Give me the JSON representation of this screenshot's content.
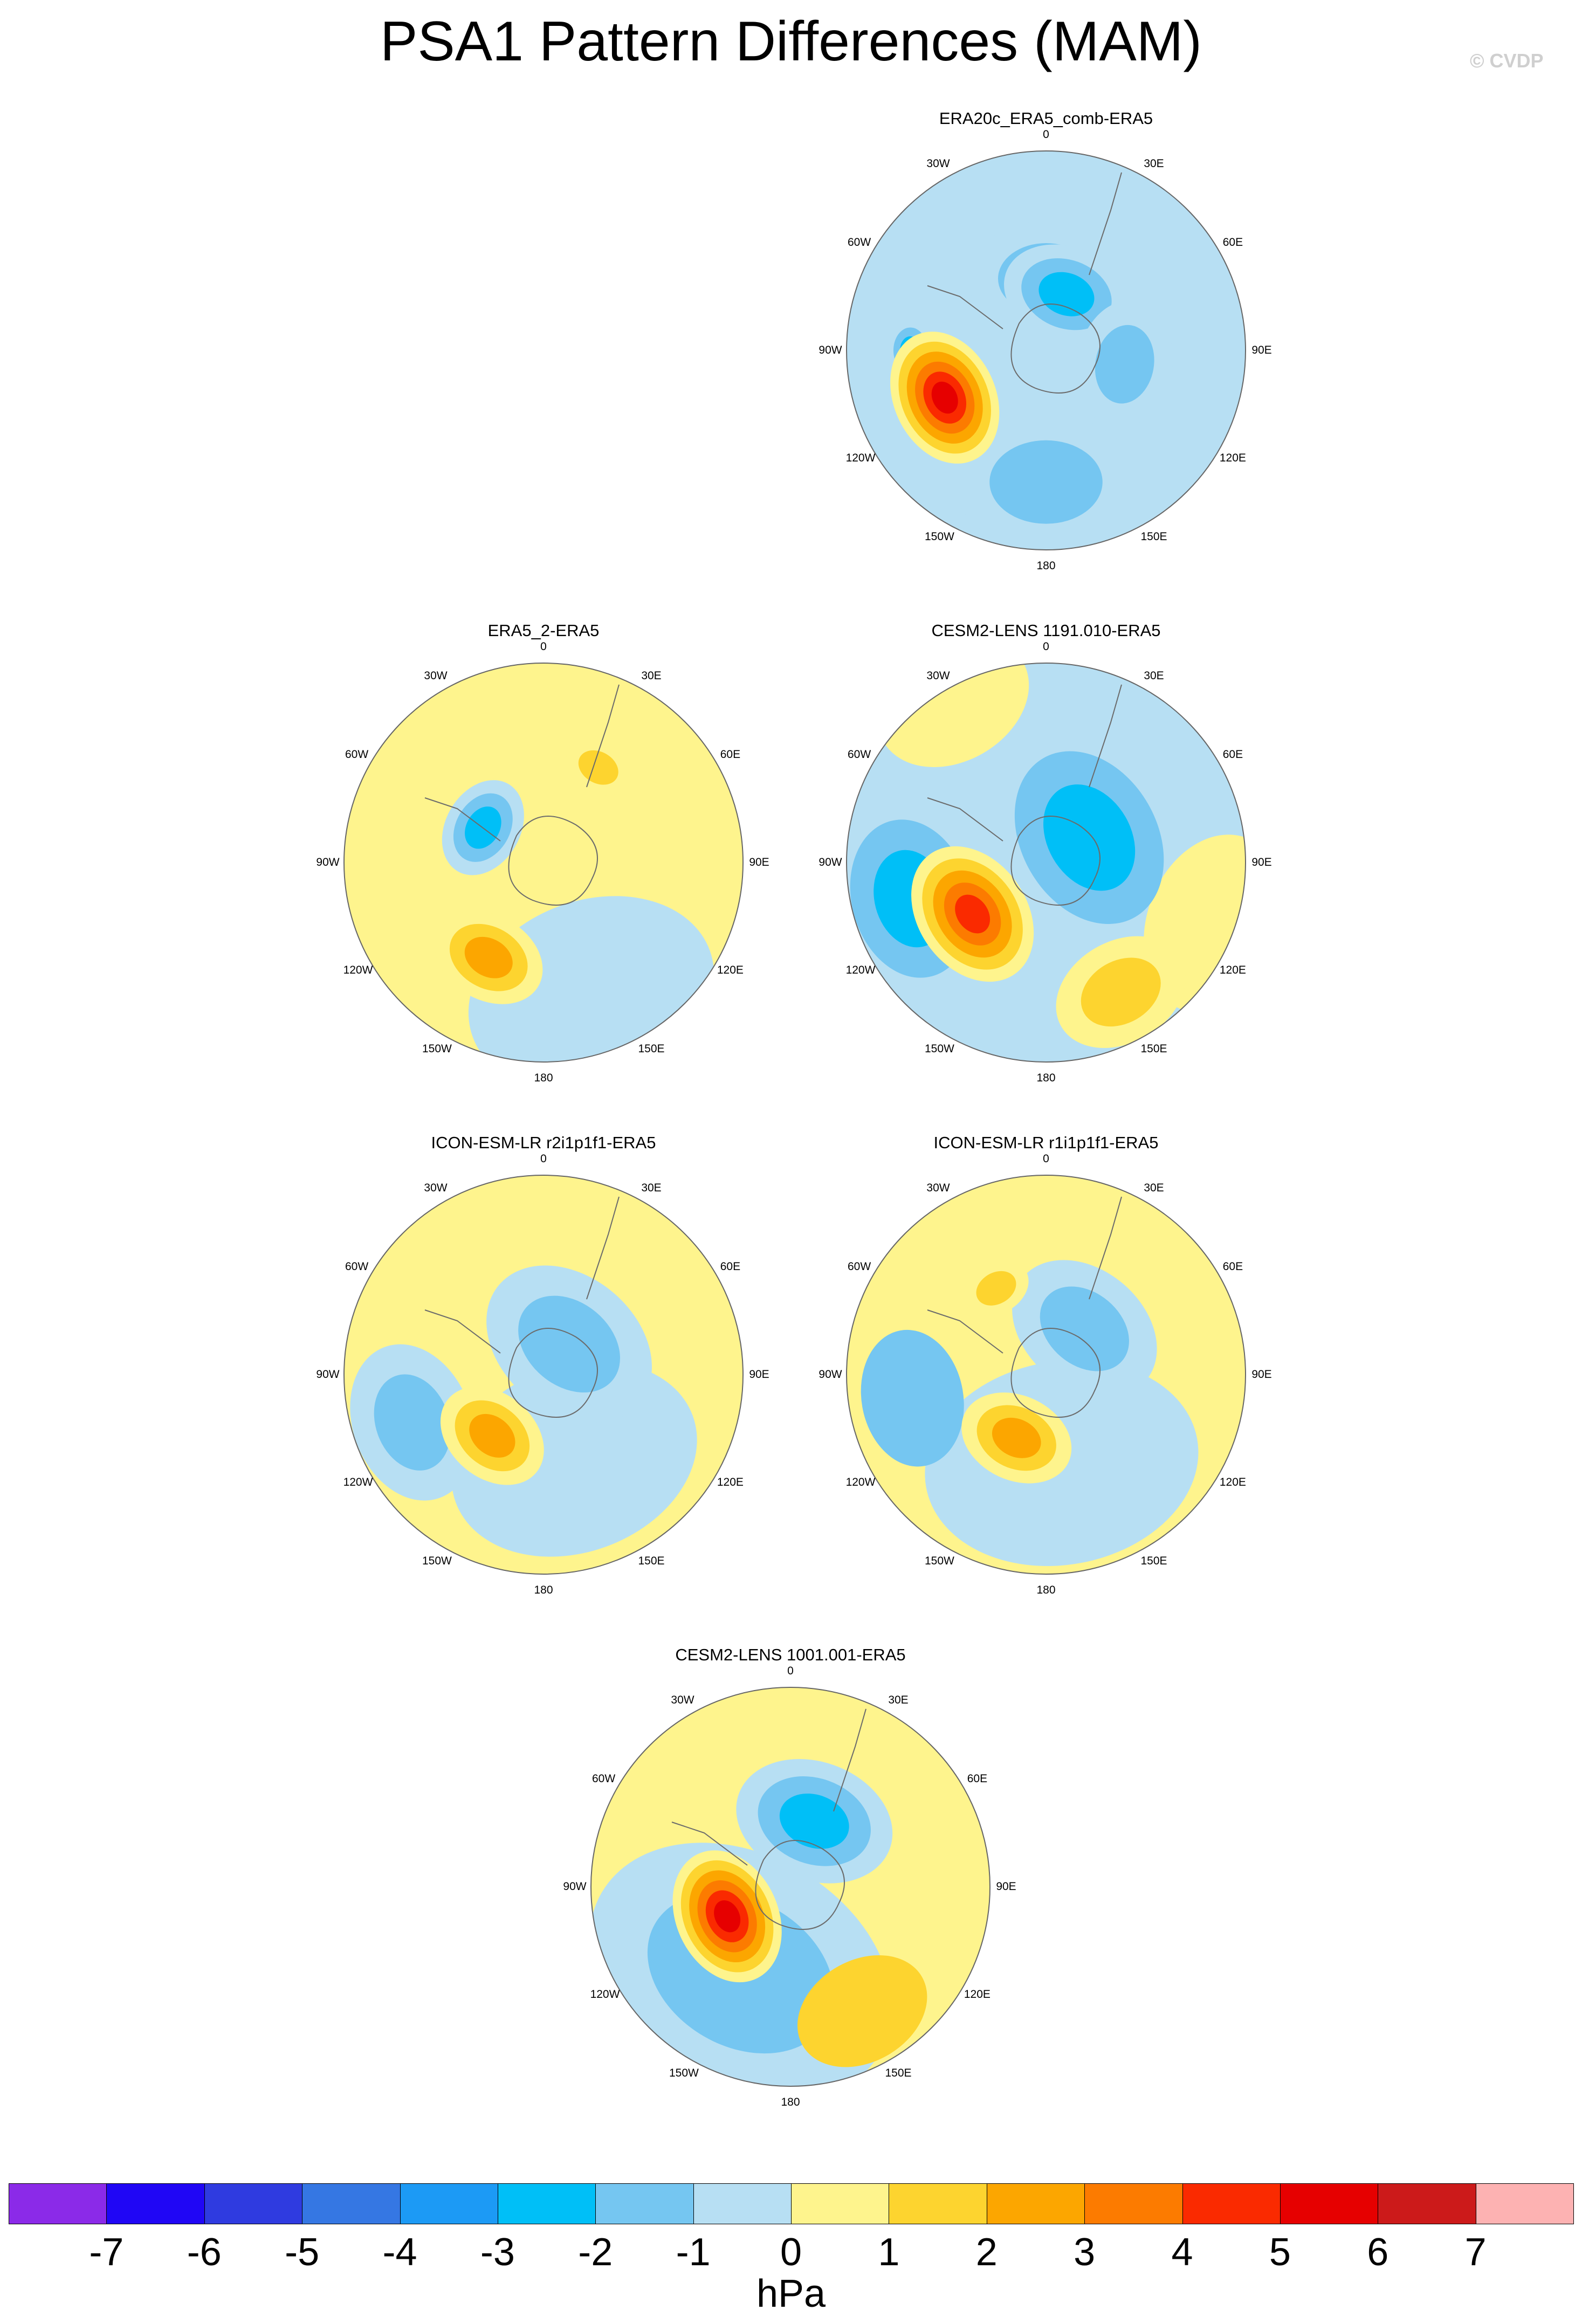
{
  "figure": {
    "title": "PSA1 Pattern Differences (MAM)",
    "credit": "© CVDP",
    "units": "hPa"
  },
  "lon_labels": [
    "0",
    "30E",
    "60E",
    "90E",
    "120E",
    "150E",
    "180",
    "150W",
    "120W",
    "90W",
    "60W",
    "30W"
  ],
  "panels": [
    {
      "id": "era20c",
      "title": "ERA20c_ERA5_comb-ERA5",
      "background": 0,
      "features": [
        {
          "kind": "lobe",
          "rho": 0.36,
          "theta": 0,
          "r": 0.34,
          "levels": [
            -1,
            -2
          ]
        },
        {
          "kind": "lobe",
          "rho": 0.3,
          "theta": 20,
          "r": 0.28,
          "levels": [
            -1,
            -2,
            -3
          ]
        },
        {
          "kind": "lobe",
          "rho": 0.66,
          "theta": 180,
          "r": 0.4,
          "levels": [
            -1,
            -2
          ]
        },
        {
          "kind": "lobe",
          "rho": 0.4,
          "theta": 100,
          "r": 0.28,
          "levels": [
            -1,
            -2
          ]
        },
        {
          "kind": "lobe",
          "rho": 0.68,
          "theta": 270,
          "r": 0.1,
          "levels": [
            -2,
            -3
          ]
        },
        {
          "kind": "lobe",
          "rho": 0.56,
          "theta": 245,
          "r": 0.3,
          "levels": [
            1,
            2,
            3,
            4,
            5,
            6
          ]
        }
      ]
    },
    {
      "id": "era5_2",
      "title": "ERA5_2-ERA5",
      "background": 1,
      "features": [
        {
          "kind": "lobe",
          "rho": 0.7,
          "theta": 160,
          "r": 0.55,
          "levels": [
            -1
          ]
        },
        {
          "kind": "lobe",
          "rho": 0.35,
          "theta": 300,
          "r": 0.22,
          "levels": [
            -1,
            -2,
            -3
          ]
        },
        {
          "kind": "lobe",
          "rho": 0.55,
          "theta": 210,
          "r": 0.25,
          "levels": [
            1,
            2,
            3
          ]
        },
        {
          "kind": "lobe",
          "rho": 0.55,
          "theta": 30,
          "r": 0.15,
          "levels": [
            1,
            2
          ]
        }
      ]
    },
    {
      "id": "cesm2_1191",
      "title": "CESM2-LENS 1191.010-ERA5",
      "background": -1,
      "features": [
        {
          "kind": "lobe",
          "rho": 0.93,
          "theta": 330,
          "r": 0.35,
          "levels": [
            1
          ]
        },
        {
          "kind": "lobe",
          "rho": 0.9,
          "theta": 110,
          "r": 0.4,
          "levels": [
            1
          ]
        },
        {
          "kind": "lobe",
          "rho": 0.75,
          "theta": 150,
          "r": 0.3,
          "levels": [
            1,
            2
          ]
        },
        {
          "kind": "lobe",
          "rho": 0.25,
          "theta": 60,
          "r": 0.4,
          "levels": [
            -2,
            -3
          ]
        },
        {
          "kind": "lobe",
          "rho": 0.7,
          "theta": 255,
          "r": 0.35,
          "levels": [
            -2,
            -3
          ]
        },
        {
          "kind": "lobe",
          "rho": 0.45,
          "theta": 235,
          "r": 0.32,
          "levels": [
            1,
            2,
            3,
            4,
            5
          ]
        }
      ]
    },
    {
      "id": "icon_r2",
      "title": "ICON-ESM-LR r2i1p1f1-ERA5",
      "background": 1,
      "features": [
        {
          "kind": "lobe",
          "rho": 0.45,
          "theta": 160,
          "r": 0.55,
          "levels": [
            -1
          ]
        },
        {
          "kind": "lobe",
          "rho": 0.2,
          "theta": 40,
          "r": 0.4,
          "levels": [
            -1,
            -2
          ]
        },
        {
          "kind": "lobe",
          "rho": 0.7,
          "theta": 250,
          "r": 0.35,
          "levels": [
            -1,
            -2
          ]
        },
        {
          "kind": "lobe",
          "rho": 0.4,
          "theta": 220,
          "r": 0.25,
          "levels": [
            1,
            2,
            3
          ]
        }
      ]
    },
    {
      "id": "icon_r1",
      "title": "ICON-ESM-LR r1i1p1f1-ERA5",
      "background": 1,
      "features": [
        {
          "kind": "lobe",
          "rho": 0.45,
          "theta": 170,
          "r": 0.6,
          "levels": [
            -1
          ]
        },
        {
          "kind": "lobe",
          "rho": 0.3,
          "theta": 40,
          "r": 0.35,
          "levels": [
            -1,
            -2
          ]
        },
        {
          "kind": "lobe",
          "rho": 0.68,
          "theta": 260,
          "r": 0.3,
          "levels": [
            -2
          ]
        },
        {
          "kind": "lobe",
          "rho": 0.35,
          "theta": 205,
          "r": 0.25,
          "levels": [
            1,
            2,
            3
          ]
        },
        {
          "kind": "lobe",
          "rho": 0.5,
          "theta": 330,
          "r": 0.15,
          "levels": [
            1,
            2
          ]
        }
      ]
    },
    {
      "id": "cesm2_1001",
      "title": "CESM2-LENS 1001.001-ERA5",
      "background": 1,
      "features": [
        {
          "kind": "lobe",
          "rho": 0.5,
          "theta": 210,
          "r": 0.7,
          "levels": [
            -1,
            -2
          ]
        },
        {
          "kind": "lobe",
          "rho": 0.35,
          "theta": 20,
          "r": 0.35,
          "levels": [
            -1,
            -2,
            -3
          ]
        },
        {
          "kind": "lobe",
          "rho": 0.72,
          "theta": 150,
          "r": 0.3,
          "levels": [
            2
          ]
        },
        {
          "kind": "lobe",
          "rho": 0.35,
          "theta": 245,
          "r": 0.3,
          "levels": [
            1,
            2,
            3,
            4,
            5,
            6
          ]
        }
      ]
    }
  ],
  "colorbar": {
    "colors": [
      "#8b2ae8",
      "#2006f5",
      "#2f3be0",
      "#3577e3",
      "#1c9af5",
      "#00bff7",
      "#75c6f1",
      "#b7dff3",
      "#fef48d",
      "#fdd42f",
      "#fca600",
      "#fc7b00",
      "#fa2a00",
      "#e60000",
      "#cc1a1a",
      "#fdb2b2"
    ],
    "tick_labels": [
      "-7",
      "-6",
      "-5",
      "-4",
      "-3",
      "-2",
      "-1",
      "0",
      "1",
      "2",
      "3",
      "4",
      "5",
      "6",
      "7"
    ]
  }
}
